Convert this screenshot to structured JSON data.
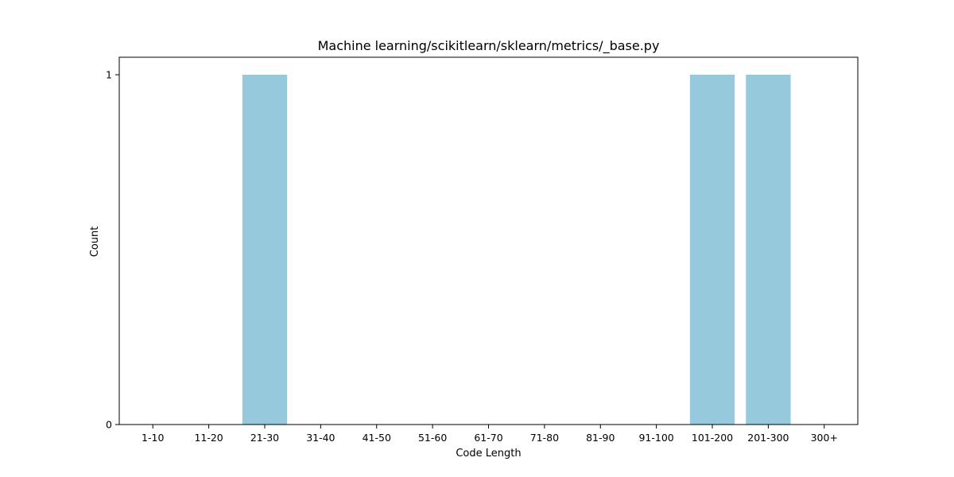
{
  "chart_data": {
    "type": "bar",
    "title": "Machine learning/scikitlearn/sklearn/metrics/_base.py",
    "xlabel": "Code Length",
    "ylabel": "Count",
    "categories": [
      "1-10",
      "11-20",
      "21-30",
      "31-40",
      "41-50",
      "51-60",
      "61-70",
      "71-80",
      "81-90",
      "91-100",
      "101-200",
      "201-300",
      "300+"
    ],
    "values": [
      0,
      0,
      1,
      0,
      0,
      0,
      0,
      0,
      0,
      0,
      1,
      1,
      0
    ],
    "ylim": [
      0,
      1.05
    ],
    "yticks": [
      0,
      1
    ],
    "bar_color": "#96c9dc",
    "grid": false,
    "legend": "none"
  }
}
